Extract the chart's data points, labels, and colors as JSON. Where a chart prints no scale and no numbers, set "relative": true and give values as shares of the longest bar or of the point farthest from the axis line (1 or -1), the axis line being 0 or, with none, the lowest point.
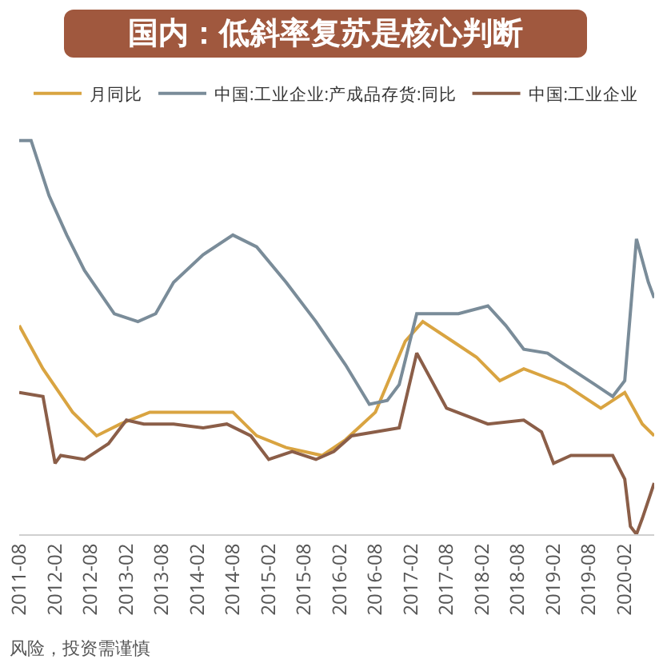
{
  "chart_data": {
    "type": "line",
    "title": "国内：低斜率复苏是核心判断",
    "relative": true,
    "legend": "top",
    "grid": false,
    "marker": "none",
    "line_style": "solid",
    "xlim": [
      "2011-08",
      "2020-07"
    ],
    "xticks": [
      "2011-08",
      "2012-02",
      "2012-08",
      "2013-02",
      "2013-08",
      "2014-02",
      "2014-08",
      "2015-02",
      "2015-08",
      "2016-02",
      "2016-08",
      "2017-02",
      "2017-08",
      "2018-02",
      "2018-08",
      "2019-02",
      "2019-08",
      "2020-02"
    ],
    "annotations": [
      "风险，投资需谨慎"
    ],
    "series": [
      {
        "name": "月同比",
        "color": "#d9a441",
        "x": [
          "2011-08",
          "2011-12",
          "2012-05",
          "2012-09",
          "2013-01",
          "2013-06",
          "2013-10",
          "2014-03",
          "2014-08",
          "2014-12",
          "2015-05",
          "2015-11",
          "2016-03",
          "2016-08",
          "2017-01",
          "2017-04",
          "2017-09",
          "2018-01",
          "2018-05",
          "2018-09",
          "2019-04",
          "2019-10",
          "2020-02",
          "2020-05",
          "2020-07"
        ],
        "values": [
          0.53,
          0.42,
          0.31,
          0.25,
          0.28,
          0.31,
          0.31,
          0.31,
          0.31,
          0.25,
          0.22,
          0.2,
          0.24,
          0.31,
          0.49,
          0.54,
          0.49,
          0.45,
          0.39,
          0.42,
          0.38,
          0.32,
          0.36,
          0.28,
          0.25
        ]
      },
      {
        "name": "中国:工业企业:产成品存货:同比",
        "color": "#7a8c99",
        "x": [
          "2011-08",
          "2011-10",
          "2012-01",
          "2012-04",
          "2012-07",
          "2012-12",
          "2013-04",
          "2013-07",
          "2013-10",
          "2014-03",
          "2014-08",
          "2014-12",
          "2015-05",
          "2015-10",
          "2016-03",
          "2016-07",
          "2016-10",
          "2016-12",
          "2017-03",
          "2017-07",
          "2017-10",
          "2018-03",
          "2018-06",
          "2018-09",
          "2019-01",
          "2019-04",
          "2019-09",
          "2019-12",
          "2020-02",
          "2020-04",
          "2020-06",
          "2020-07"
        ],
        "values": [
          1.0,
          1.0,
          0.86,
          0.76,
          0.67,
          0.56,
          0.54,
          0.56,
          0.64,
          0.71,
          0.76,
          0.73,
          0.64,
          0.54,
          0.43,
          0.33,
          0.34,
          0.38,
          0.56,
          0.56,
          0.56,
          0.58,
          0.53,
          0.47,
          0.46,
          0.43,
          0.38,
          0.35,
          0.39,
          0.75,
          0.64,
          0.6
        ]
      },
      {
        "name": "中国:工业企业",
        "color": "#8b5e48",
        "x": [
          "2011-08",
          "2011-12",
          "2012-02",
          "2012-03",
          "2012-07",
          "2012-11",
          "2013-02",
          "2013-05",
          "2013-10",
          "2014-03",
          "2014-07",
          "2014-11",
          "2015-02",
          "2015-06",
          "2015-10",
          "2016-01",
          "2016-04",
          "2016-08",
          "2016-12",
          "2017-03",
          "2017-08",
          "2018-03",
          "2018-09",
          "2018-12",
          "2019-02",
          "2019-05",
          "2019-12",
          "2020-02",
          "2020-03",
          "2020-04",
          "2020-05",
          "2020-07"
        ],
        "values": [
          0.36,
          0.35,
          0.18,
          0.2,
          0.19,
          0.23,
          0.29,
          0.28,
          0.28,
          0.27,
          0.28,
          0.25,
          0.19,
          0.21,
          0.19,
          0.21,
          0.25,
          0.26,
          0.27,
          0.46,
          0.32,
          0.28,
          0.29,
          0.26,
          0.18,
          0.2,
          0.2,
          0.14,
          0.02,
          0,
          0.04,
          0.13
        ]
      }
    ]
  }
}
